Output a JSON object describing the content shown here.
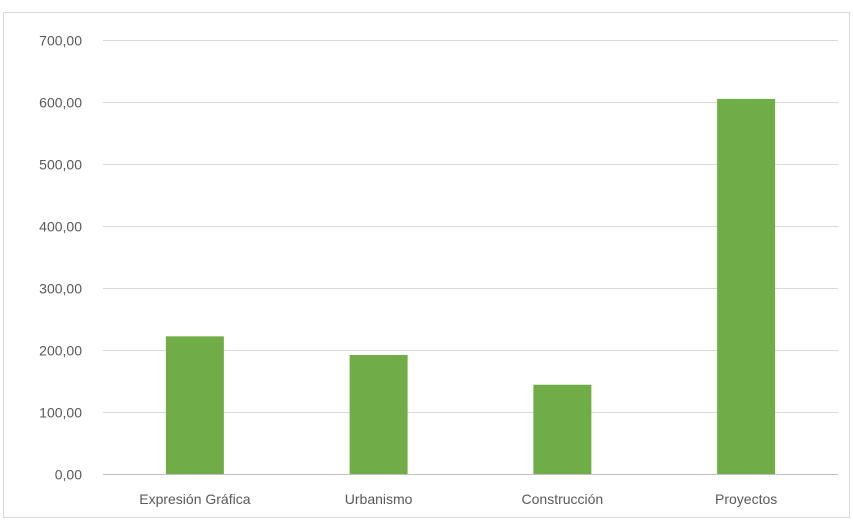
{
  "chart_data": {
    "type": "bar",
    "categories": [
      "Expresión Gráfica",
      "Urbanismo",
      "Construcción",
      "Proyectos"
    ],
    "values": [
      222,
      192,
      144,
      605
    ],
    "ylim": [
      0,
      700
    ],
    "y_ticks": [
      0,
      100,
      200,
      300,
      400,
      500,
      600,
      700
    ],
    "y_tick_labels": [
      "0,00",
      "100,00",
      "200,00",
      "300,00",
      "400,00",
      "500,00",
      "600,00",
      "700,00"
    ],
    "title": "",
    "xlabel": "",
    "ylabel": "",
    "grid": true,
    "legend": "none",
    "bar_color": "#70ad47"
  }
}
